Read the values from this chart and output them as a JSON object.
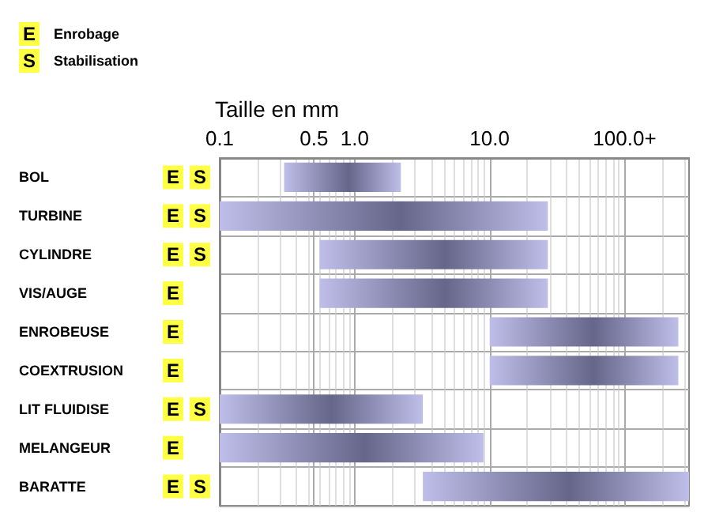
{
  "chart_data": {
    "type": "bar",
    "orientation": "horizontal",
    "xlabel": "Taille en mm",
    "categories": [
      "BOL",
      "TURBINE",
      "CYLINDRE",
      "VIS/AUGE",
      "ENROBEUSE",
      "COEXTRUSION",
      "LIT FLUIDISE",
      "MELANGEUR",
      "BARATTE"
    ],
    "base": [
      0.3,
      0.1,
      0.55,
      0.55,
      10,
      10,
      0.1,
      0.1,
      3.2
    ],
    "values": [
      1.9,
      26.9,
      26.45,
      26.45,
      240,
      240,
      3.1,
      8.9,
      296.8
    ],
    "color": "#66668a",
    "log": "x",
    "xlim": [
      0.1,
      300
    ],
    "xticks": [
      0.1,
      0.5,
      {
        "value": 1,
        "label": "1.0"
      },
      {
        "value": 10,
        "label": "10.0"
      },
      {
        "value": 100,
        "label": "100.0+"
      }
    ],
    "grid": true,
    "annotations": [
      "E",
      "Enrobage",
      "S",
      "Stabilisation",
      "E S",
      "E S",
      "E S",
      "E",
      "E",
      "E",
      "E S",
      "E",
      "E S"
    ]
  }
}
